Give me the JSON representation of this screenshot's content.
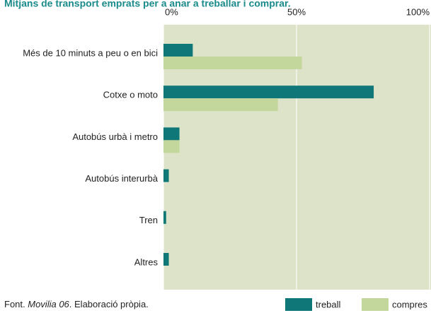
{
  "chart_data": {
    "type": "hbar",
    "title": "Mitjans de transport emprats per a anar a treballar i comprar.",
    "categories": [
      "Més de 10 minuts a peu o en bici",
      "Cotxe o moto",
      "Autobús  urbà i metro",
      "Autobús  interurbà",
      "Tren",
      "Altres"
    ],
    "series": [
      {
        "name": "treball",
        "color": "#0f7777",
        "values": [
          11,
          79,
          6,
          2,
          1,
          2
        ]
      },
      {
        "name": "compres",
        "color": "#c3d69b",
        "values": [
          52,
          43,
          6,
          0,
          0,
          0
        ]
      }
    ],
    "xlim": [
      0,
      100
    ],
    "xticks": [
      {
        "value": 0,
        "label": "0%"
      },
      {
        "value": 50,
        "label": "50%"
      },
      {
        "value": 100,
        "label": "100%"
      }
    ],
    "grid": true,
    "plot_background": "#dde3c8",
    "source": {
      "prefix": "Font. ",
      "italic": "Movilia 06",
      "suffix": ". Elaboració pròpia."
    }
  }
}
